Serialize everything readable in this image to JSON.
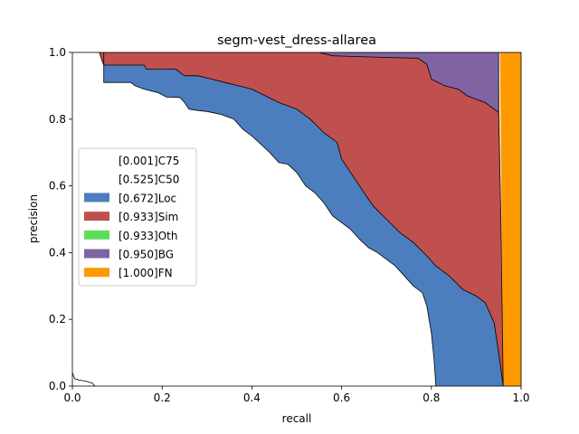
{
  "chart_data": {
    "type": "area",
    "title": "segm-vest_dress-allarea",
    "xlabel": "recall",
    "ylabel": "precision",
    "xlim": [
      0,
      1
    ],
    "ylim": [
      0,
      1
    ],
    "xticks": [
      "0.0",
      "0.2",
      "0.4",
      "0.6",
      "0.8",
      "1.0"
    ],
    "yticks": [
      "0.0",
      "0.2",
      "0.4",
      "0.6",
      "0.8",
      "1.0"
    ],
    "legend_position": "center-left",
    "series": [
      {
        "name": "[0.001]C75",
        "color": "#ffffff",
        "points": [
          [
            0,
            0.04
          ],
          [
            0.005,
            0.022
          ],
          [
            0.015,
            0.018
          ],
          [
            0.03,
            0.015
          ],
          [
            0.045,
            0.008
          ],
          [
            0.05,
            0
          ]
        ]
      },
      {
        "name": "[0.525]C50",
        "color": "#ffffff",
        "points": [
          [
            0.07,
            1
          ],
          [
            0.07,
            0.91
          ],
          [
            0.13,
            0.91
          ],
          [
            0.14,
            0.9
          ],
          [
            0.16,
            0.89
          ],
          [
            0.19,
            0.88
          ],
          [
            0.21,
            0.866
          ],
          [
            0.24,
            0.865
          ],
          [
            0.25,
            0.85
          ],
          [
            0.26,
            0.83
          ],
          [
            0.28,
            0.826
          ],
          [
            0.3,
            0.823
          ],
          [
            0.33,
            0.815
          ],
          [
            0.36,
            0.8
          ],
          [
            0.38,
            0.77
          ],
          [
            0.4,
            0.75
          ],
          [
            0.42,
            0.725
          ],
          [
            0.44,
            0.7
          ],
          [
            0.46,
            0.67
          ],
          [
            0.48,
            0.665
          ],
          [
            0.5,
            0.64
          ],
          [
            0.52,
            0.6
          ],
          [
            0.54,
            0.58
          ],
          [
            0.56,
            0.55
          ],
          [
            0.58,
            0.51
          ],
          [
            0.6,
            0.49
          ],
          [
            0.62,
            0.47
          ],
          [
            0.64,
            0.44
          ],
          [
            0.66,
            0.415
          ],
          [
            0.68,
            0.4
          ],
          [
            0.7,
            0.38
          ],
          [
            0.72,
            0.36
          ],
          [
            0.74,
            0.33
          ],
          [
            0.76,
            0.3
          ],
          [
            0.78,
            0.28
          ],
          [
            0.79,
            0.24
          ],
          [
            0.8,
            0.16
          ],
          [
            0.806,
            0.08
          ],
          [
            0.81,
            0
          ]
        ]
      },
      {
        "name": "[0.672]Loc",
        "color": "#4c7ebf",
        "points": [
          [
            0.06,
            1
          ],
          [
            0.065,
            0.98
          ],
          [
            0.07,
            0.962
          ],
          [
            0.16,
            0.962
          ],
          [
            0.165,
            0.95
          ],
          [
            0.23,
            0.95
          ],
          [
            0.25,
            0.93
          ],
          [
            0.28,
            0.93
          ],
          [
            0.31,
            0.92
          ],
          [
            0.34,
            0.91
          ],
          [
            0.37,
            0.9
          ],
          [
            0.4,
            0.89
          ],
          [
            0.43,
            0.87
          ],
          [
            0.46,
            0.85
          ],
          [
            0.5,
            0.83
          ],
          [
            0.53,
            0.8
          ],
          [
            0.56,
            0.76
          ],
          [
            0.59,
            0.73
          ],
          [
            0.6,
            0.68
          ],
          [
            0.62,
            0.64
          ],
          [
            0.64,
            0.6
          ],
          [
            0.67,
            0.54
          ],
          [
            0.7,
            0.5
          ],
          [
            0.73,
            0.46
          ],
          [
            0.76,
            0.43
          ],
          [
            0.79,
            0.39
          ],
          [
            0.81,
            0.36
          ],
          [
            0.84,
            0.33
          ],
          [
            0.87,
            0.29
          ],
          [
            0.9,
            0.27
          ],
          [
            0.92,
            0.25
          ],
          [
            0.94,
            0.19
          ],
          [
            0.95,
            0.1
          ],
          [
            0.96,
            0
          ]
        ]
      },
      {
        "name": "[0.933]Sim",
        "color": "#c0504d",
        "points": [
          [
            0.55,
            1
          ],
          [
            0.58,
            0.99
          ],
          [
            0.7,
            0.985
          ],
          [
            0.77,
            0.983
          ],
          [
            0.79,
            0.965
          ],
          [
            0.8,
            0.92
          ],
          [
            0.83,
            0.9
          ],
          [
            0.86,
            0.89
          ],
          [
            0.88,
            0.87
          ],
          [
            0.9,
            0.86
          ],
          [
            0.92,
            0.85
          ],
          [
            0.94,
            0.83
          ],
          [
            0.95,
            0.82
          ]
        ]
      },
      {
        "name": "[0.933]Oth",
        "color": "#5ddc5d",
        "points": []
      },
      {
        "name": "[0.950]BG",
        "color": "#8064a2",
        "points": [
          [
            0.95,
            1
          ],
          [
            0.95,
            0.82
          ],
          [
            0.955,
            0.5
          ],
          [
            0.96,
            0
          ]
        ]
      },
      {
        "name": "[1.000]FN",
        "color": "#ff9900",
        "points": [
          [
            0.96,
            0
          ],
          [
            1,
            0
          ],
          [
            1,
            1
          ],
          [
            0.953,
            1
          ]
        ]
      }
    ]
  }
}
